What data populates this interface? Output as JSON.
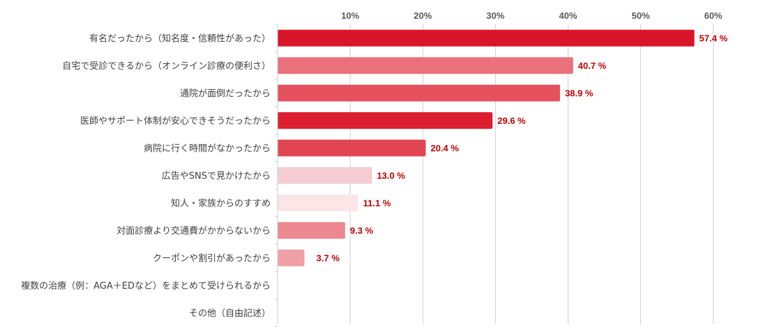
{
  "chart_data": {
    "type": "bar",
    "orientation": "horizontal",
    "categories": [
      "有名だったから（知名度・信頼性があった）",
      "自宅で受診できるから（オンライン診療の便利さ）",
      "通院が面倒だったから",
      "医師やサポート体制が安心できそうだったから",
      "病院に行く時間がなかったから",
      "広告やSNSで見かけたから",
      "知人・家族からのすすめ",
      "対面診療より交通費がかからないから",
      "クーポンや割引があったから",
      "複数の治療（例：AGA＋EDなど）をまとめて受けられるから",
      "その他（自由記述）"
    ],
    "values": [
      57.4,
      40.7,
      38.9,
      29.6,
      20.4,
      13.0,
      11.1,
      9.3,
      3.7,
      null,
      null
    ],
    "data_labels": [
      "57.4 %",
      "40.7 %",
      "38.9 %",
      "29.6 %",
      "20.4 %",
      "13.0 %",
      "11.1 %",
      "9.3 %",
      "3.7 %",
      "",
      ""
    ],
    "bar_colors": [
      "#d9152a",
      "#ea7079",
      "#e5525e",
      "#dc1f30",
      "#e14552",
      "#f5cdd3",
      "#fbe5e7",
      "#ec8890",
      "#efa1a6",
      "",
      ""
    ],
    "tick_values": [
      10,
      20,
      30,
      40,
      50,
      60
    ],
    "tick_labels": [
      "10%",
      "20%",
      "30%",
      "40%",
      "50%",
      "60%"
    ],
    "xlim": [
      0,
      60
    ],
    "x_axis_position": "top",
    "grid": true,
    "legend": "none",
    "label_color": "#c00000",
    "grid_color": "#c8cdd6"
  }
}
